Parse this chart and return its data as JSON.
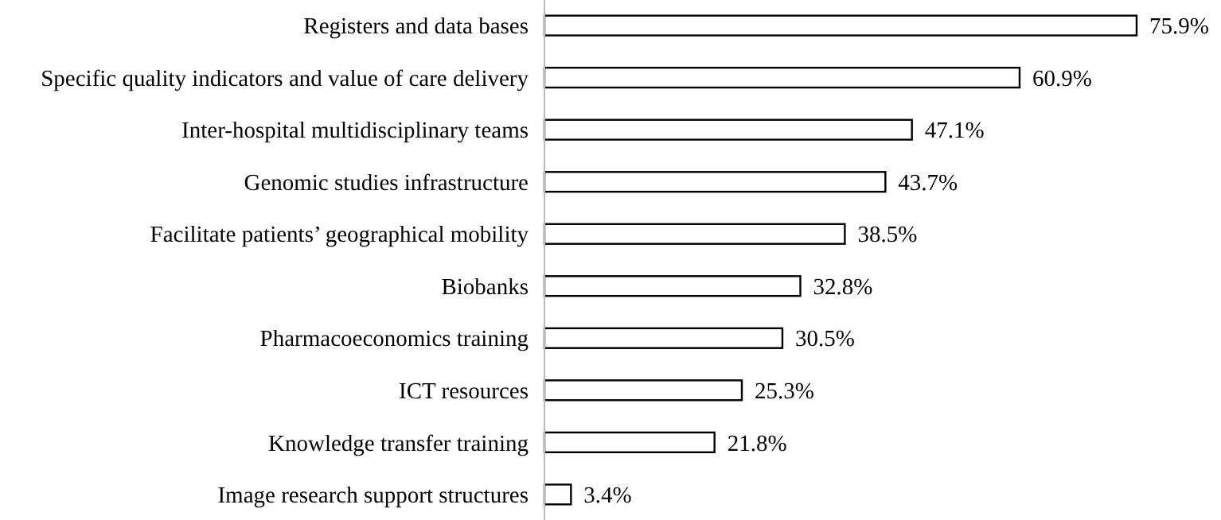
{
  "chart_data": {
    "type": "bar",
    "orientation": "horizontal",
    "categories": [
      "Registers and data bases",
      "Specific quality indicators and value of care delivery",
      "Inter-hospital multidisciplinary teams",
      "Genomic studies infrastructure",
      "Facilitate patients’ geographical mobility",
      "Biobanks",
      "Pharmacoeconomics training",
      "ICT resources",
      "Knowledge transfer training",
      "Image research support structures"
    ],
    "values": [
      75.9,
      60.9,
      47.1,
      43.7,
      38.5,
      32.8,
      30.5,
      25.3,
      21.8,
      3.4
    ],
    "value_labels": [
      "75.9%",
      "60.9%",
      "47.1%",
      "43.7%",
      "38.5%",
      "32.8%",
      "30.5%",
      "25.3%",
      "21.8%",
      "3.4%"
    ],
    "color": "#ffffff"
  }
}
